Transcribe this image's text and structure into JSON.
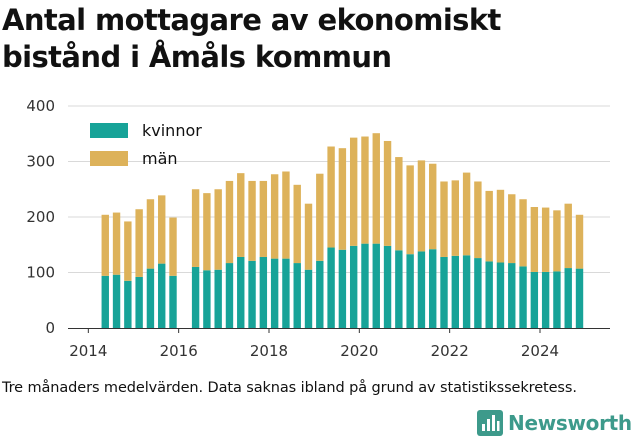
{
  "title": "Antal mottagare av ekonomiskt bistånd i Åmåls kommun",
  "caption": "Tre månaders medelvärden. Data saknas ibland på grund av statistikssekretess.",
  "brand": "Newsworthy",
  "colors": {
    "kvinnor": "#17a398",
    "man": "#ddb25a",
    "grid": "#d9d9d9",
    "brand": "#3d9a8b"
  },
  "chart_data": {
    "type": "bar",
    "stacked": true,
    "xlim": [
      2013.55,
      2025.55
    ],
    "ylim": [
      0,
      400
    ],
    "yticks": [
      0,
      100,
      200,
      300,
      400
    ],
    "xticks": [
      2014,
      2016,
      2018,
      2020,
      2022,
      2024
    ],
    "grid": true,
    "legend": "top-left",
    "x": [
      2014.375,
      2014.625,
      2014.875,
      2015.125,
      2015.375,
      2015.625,
      2015.875,
      2016.375,
      2016.625,
      2016.875,
      2017.125,
      2017.375,
      2017.625,
      2017.875,
      2018.125,
      2018.375,
      2018.625,
      2018.875,
      2019.125,
      2019.375,
      2019.625,
      2019.875,
      2020.125,
      2020.375,
      2020.625,
      2020.875,
      2021.125,
      2021.375,
      2021.625,
      2021.875,
      2022.125,
      2022.375,
      2022.625,
      2022.875,
      2023.125,
      2023.375,
      2023.625,
      2023.875,
      2024.125,
      2024.375,
      2024.625,
      2024.875
    ],
    "series": [
      {
        "name": "kvinnor",
        "values": [
          94,
          96,
          85,
          92,
          107,
          116,
          94,
          110,
          104,
          105,
          117,
          128,
          121,
          128,
          125,
          125,
          117,
          105,
          121,
          145,
          141,
          148,
          152,
          152,
          148,
          140,
          133,
          138,
          142,
          128,
          130,
          131,
          126,
          120,
          118,
          117,
          111,
          101,
          101,
          102,
          108,
          107
        ]
      },
      {
        "name": "män",
        "values": [
          110,
          112,
          107,
          122,
          125,
          123,
          105,
          140,
          139,
          145,
          148,
          151,
          144,
          137,
          152,
          157,
          141,
          119,
          157,
          182,
          183,
          195,
          193,
          199,
          189,
          168,
          160,
          164,
          154,
          136,
          136,
          149,
          138,
          127,
          131,
          124,
          121,
          117,
          116,
          110,
          116,
          97
        ]
      }
    ]
  }
}
